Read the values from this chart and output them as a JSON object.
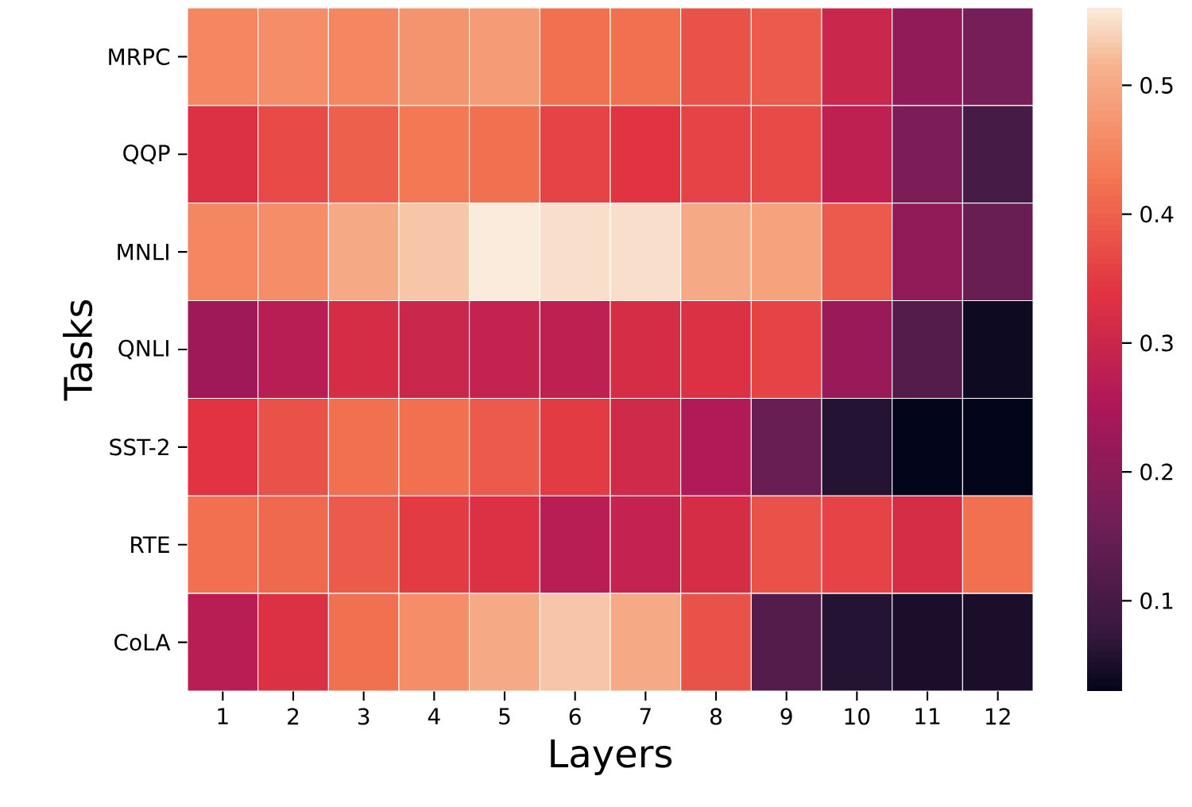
{
  "chart_data": {
    "type": "heatmap",
    "xlabel": "Layers",
    "ylabel": "Tasks",
    "categories": [
      "1",
      "2",
      "3",
      "4",
      "5",
      "6",
      "7",
      "8",
      "9",
      "10",
      "11",
      "12"
    ],
    "y_categories": [
      "MRPC",
      "QQP",
      "MNLI",
      "QNLI",
      "SST-2",
      "RTE",
      "CoLA"
    ],
    "cells": [
      [
        0.45,
        0.46,
        0.45,
        0.47,
        0.48,
        0.42,
        0.42,
        0.38,
        0.39,
        0.3,
        0.21,
        0.17
      ],
      [
        0.33,
        0.37,
        0.4,
        0.43,
        0.42,
        0.36,
        0.34,
        0.36,
        0.37,
        0.28,
        0.18,
        0.1
      ],
      [
        0.45,
        0.46,
        0.5,
        0.53,
        0.56,
        0.55,
        0.55,
        0.5,
        0.49,
        0.39,
        0.21,
        0.15
      ],
      [
        0.23,
        0.27,
        0.32,
        0.3,
        0.29,
        0.28,
        0.32,
        0.33,
        0.36,
        0.22,
        0.12,
        0.04
      ],
      [
        0.34,
        0.38,
        0.42,
        0.42,
        0.39,
        0.35,
        0.31,
        0.26,
        0.15,
        0.06,
        0.03,
        0.03
      ],
      [
        0.42,
        0.41,
        0.39,
        0.35,
        0.33,
        0.27,
        0.29,
        0.32,
        0.38,
        0.36,
        0.32,
        0.42
      ],
      [
        0.27,
        0.33,
        0.42,
        0.46,
        0.5,
        0.53,
        0.5,
        0.38,
        0.12,
        0.06,
        0.05,
        0.05
      ]
    ],
    "clim": [
      0.03,
      0.56
    ],
    "cticks": [
      0.1,
      0.2,
      0.3,
      0.4,
      0.5
    ]
  }
}
